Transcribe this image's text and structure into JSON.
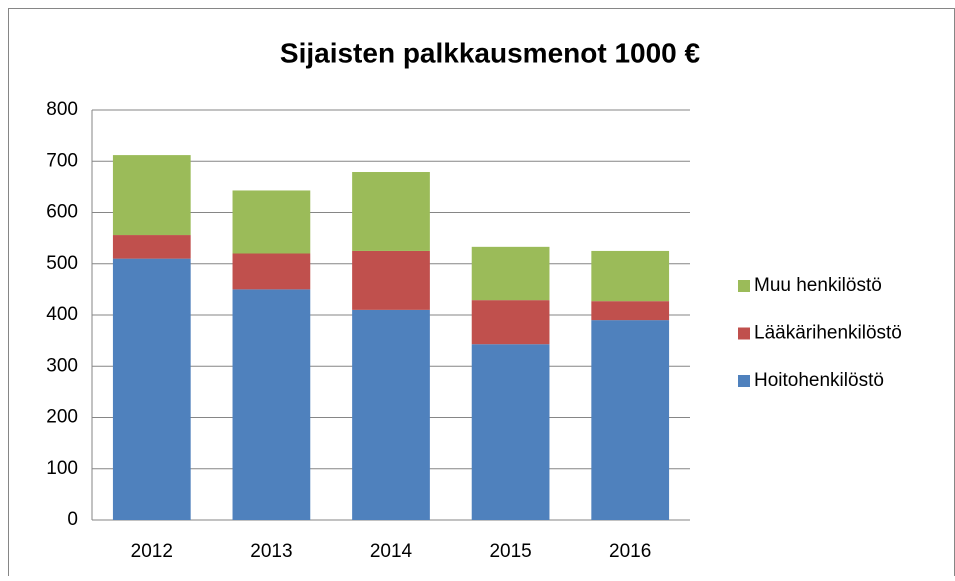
{
  "chart_data": {
    "type": "stacked_bar",
    "title": "Sijaisten palkkausmenot 1000 €",
    "categories": [
      "2012",
      "2013",
      "2014",
      "2015",
      "2016"
    ],
    "series": [
      {
        "name": "Hoitohenkilöstö",
        "color": "#4f81bd",
        "values": [
          510,
          450,
          410,
          343,
          390
        ]
      },
      {
        "name": "Lääkärihenkilöstö",
        "color": "#c0504d",
        "values": [
          46,
          70,
          115,
          86,
          37
        ]
      },
      {
        "name": "Muu henkilöstö",
        "color": "#9bbb59",
        "values": [
          156,
          123,
          154,
          104,
          98
        ]
      }
    ],
    "ylim": [
      0,
      800
    ],
    "yticks": [
      0,
      100,
      200,
      300,
      400,
      500,
      600,
      700,
      800
    ],
    "grid": true,
    "legend": "right"
  }
}
